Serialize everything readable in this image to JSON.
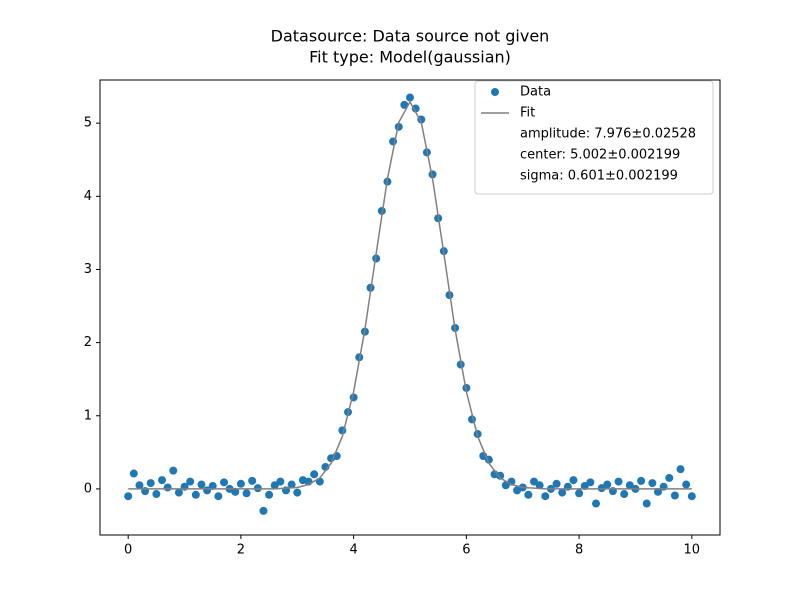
{
  "chart_data": {
    "type": "scatter",
    "title": "Datasource: Data source not given",
    "subtitle": "Fit type: Model(gaussian)",
    "xlim": [
      -0.5,
      10.5
    ],
    "ylim": [
      -0.63,
      5.59
    ],
    "xticks": [
      0,
      2,
      4,
      6,
      8,
      10
    ],
    "yticks": [
      0,
      1,
      2,
      3,
      4,
      5
    ],
    "grid": false,
    "legend": "upper right",
    "legend_notes": [
      "amplitude: 7.976±0.02528",
      "center: 5.002±0.002199",
      "sigma: 0.601±0.002199"
    ],
    "series": [
      {
        "name": "Data",
        "type": "scatter",
        "color": "#1f77b4",
        "x": [
          0,
          0.1,
          0.2,
          0.3,
          0.4,
          0.5,
          0.6,
          0.7,
          0.8,
          0.9,
          1,
          1.1,
          1.2,
          1.3,
          1.4,
          1.5,
          1.6,
          1.7,
          1.8,
          1.9,
          2,
          2.1,
          2.2,
          2.3,
          2.4,
          2.5,
          2.6,
          2.7,
          2.8,
          2.9,
          3,
          3.1,
          3.2,
          3.3,
          3.4,
          3.5,
          3.6,
          3.7,
          3.8,
          3.9,
          4,
          4.1,
          4.2,
          4.3,
          4.4,
          4.5,
          4.6,
          4.7,
          4.8,
          4.9,
          5,
          5.1,
          5.2,
          5.3,
          5.4,
          5.5,
          5.6,
          5.7,
          5.8,
          5.9,
          6,
          6.1,
          6.2,
          6.3,
          6.4,
          6.5,
          6.6,
          6.7,
          6.8,
          6.9,
          7,
          7.1,
          7.2,
          7.3,
          7.4,
          7.5,
          7.6,
          7.7,
          7.8,
          7.9,
          8,
          8.1,
          8.2,
          8.3,
          8.4,
          8.5,
          8.6,
          8.7,
          8.8,
          8.9,
          9,
          9.1,
          9.2,
          9.3,
          9.4,
          9.5,
          9.6,
          9.7,
          9.8,
          9.9,
          10
        ],
        "values": [
          -0.1,
          0.21,
          0.05,
          -0.03,
          0.08,
          -0.07,
          0.12,
          0.02,
          0.25,
          -0.05,
          0.03,
          0.1,
          -0.08,
          0.06,
          -0.02,
          0.04,
          -0.1,
          0.09,
          0,
          -0.04,
          0.07,
          -0.06,
          0.11,
          0.01,
          -0.3,
          -0.08,
          0.05,
          0.1,
          -0.02,
          0.06,
          -0.05,
          0.12,
          0.1,
          0.2,
          0.1,
          0.3,
          0.42,
          0.45,
          0.8,
          1.05,
          1.25,
          1.8,
          2.15,
          2.75,
          3.15,
          3.8,
          4.2,
          4.75,
          4.95,
          5.25,
          5.35,
          5.2,
          5.05,
          4.6,
          4.3,
          3.7,
          3.25,
          2.65,
          2.2,
          1.7,
          1.38,
          0.95,
          0.75,
          0.45,
          0.4,
          0.2,
          0.18,
          0.05,
          0.1,
          -0.02,
          0.02,
          -0.08,
          0.1,
          0.05,
          -0.1,
          0,
          0.07,
          -0.05,
          0.03,
          0.12,
          -0.06,
          0.04,
          0.09,
          -0.2,
          0.01,
          0.06,
          -0.03,
          0.1,
          -0.07,
          0.05,
          0,
          0.11,
          -0.2,
          0.08,
          -0.04,
          0.03,
          0.15,
          -0.09,
          0.27,
          0.06,
          -0.1
        ]
      },
      {
        "name": "Fit",
        "type": "line",
        "color": "#808080",
        "x": [
          0,
          0.2,
          0.4,
          0.6,
          0.8,
          1,
          1.2,
          1.4,
          1.6,
          1.8,
          2,
          2.2,
          2.4,
          2.6,
          2.8,
          3,
          3.2,
          3.4,
          3.6,
          3.8,
          4,
          4.2,
          4.4,
          4.6,
          4.8,
          5,
          5.2,
          5.4,
          5.6,
          5.8,
          6,
          6.2,
          6.4,
          6.6,
          6.8,
          7,
          7.2,
          7.4,
          7.6,
          7.8,
          8,
          8.2,
          8.4,
          8.6,
          8.8,
          9,
          9.2,
          9.4,
          9.6,
          9.8,
          10
        ],
        "values": [
          0,
          0,
          0,
          0,
          0,
          0,
          0,
          0,
          0,
          0,
          0,
          0,
          0,
          0,
          0.01,
          0.02,
          0.06,
          0.15,
          0.35,
          0.72,
          1.33,
          2.18,
          3.22,
          4.24,
          5.01,
          5.29,
          5.01,
          4.24,
          3.22,
          2.18,
          1.33,
          0.72,
          0.35,
          0.15,
          0.06,
          0.02,
          0.01,
          0,
          0,
          0,
          0,
          0,
          0,
          0,
          0,
          0,
          0,
          0,
          0,
          0,
          0
        ]
      }
    ]
  }
}
